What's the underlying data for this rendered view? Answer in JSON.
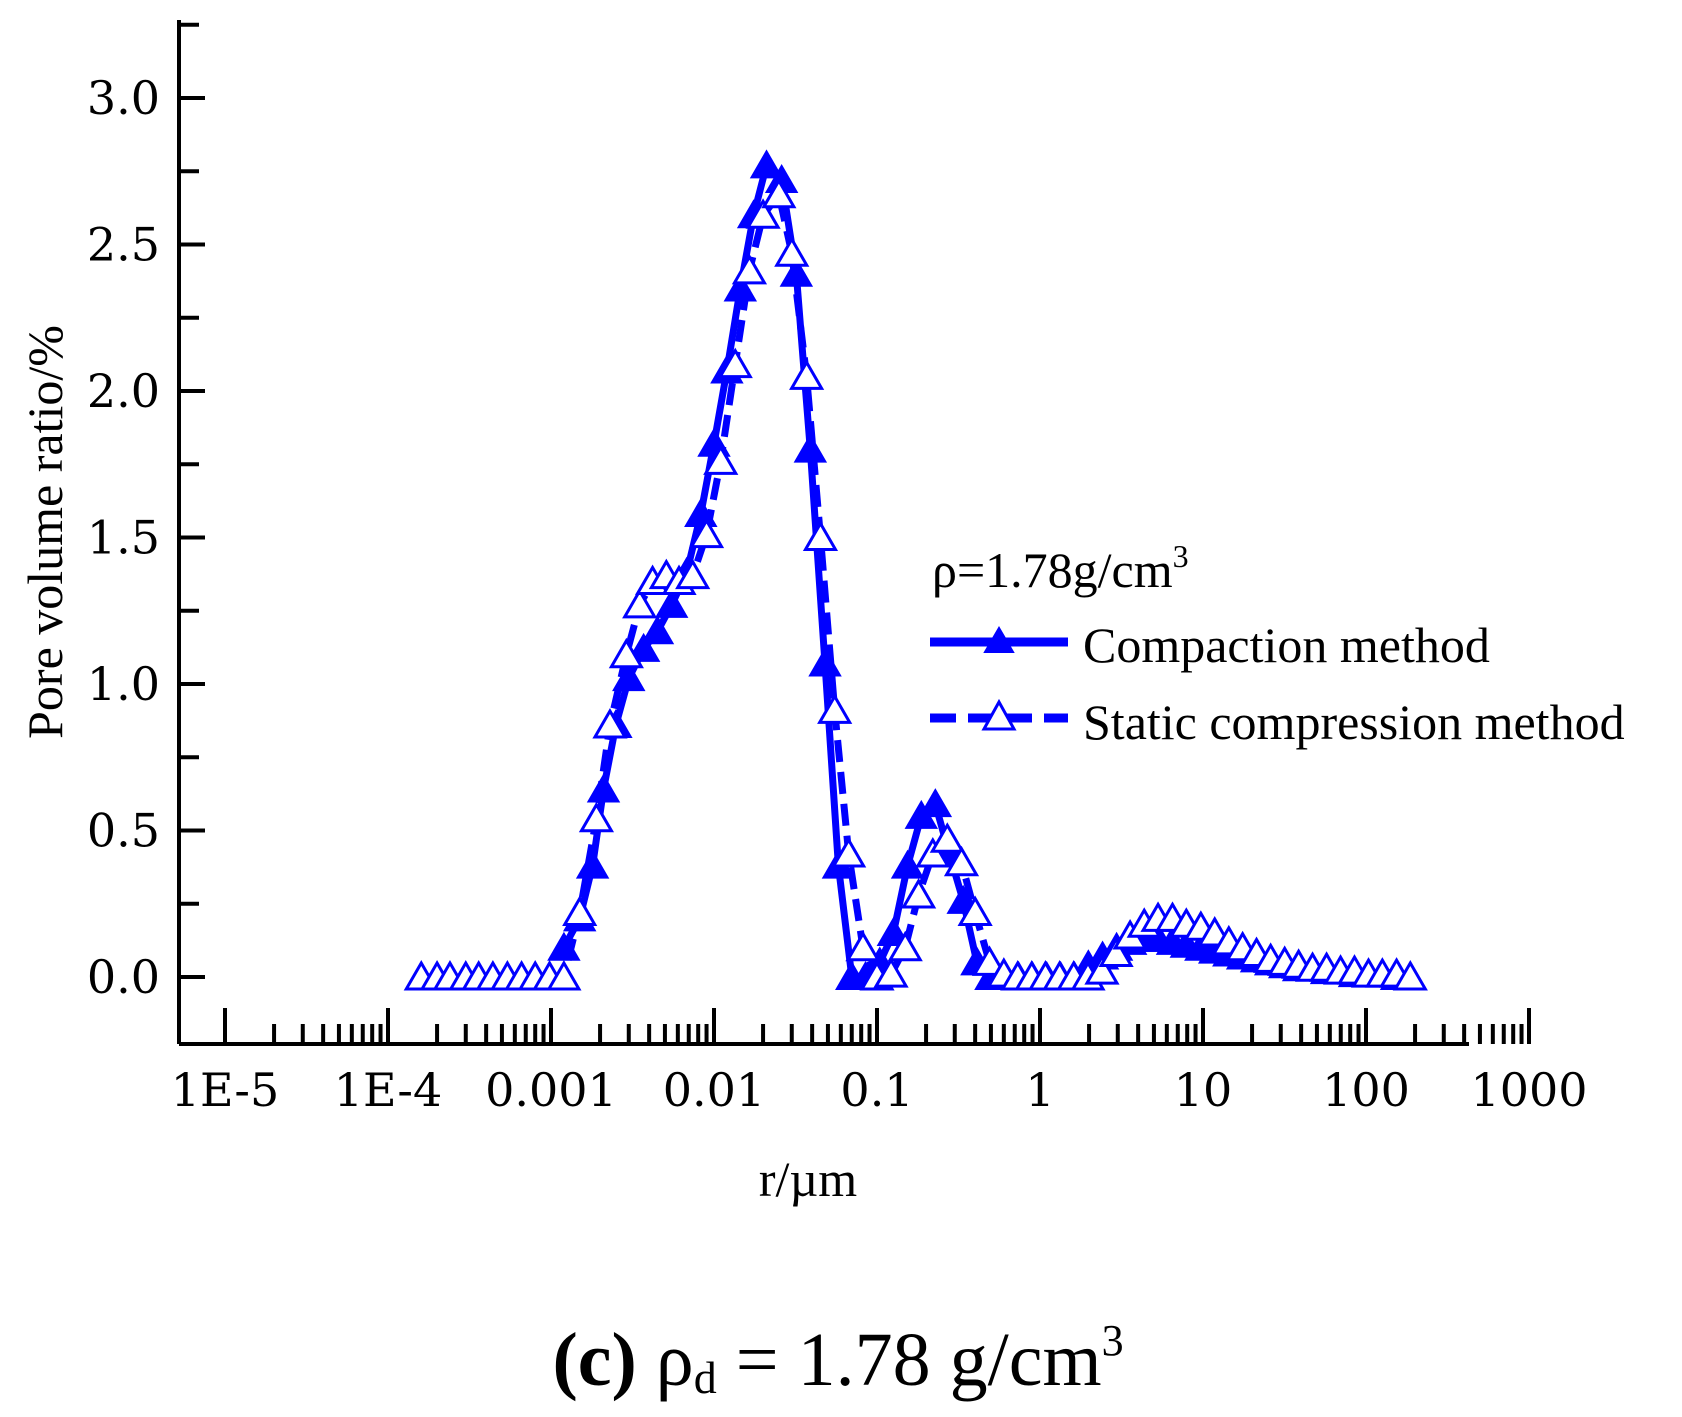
{
  "chart_data": {
    "type": "line",
    "xscale": "log",
    "xlabel": "r/µm",
    "ylabel": "Pore volume ratio/%",
    "xlim": [
      1e-05,
      1000
    ],
    "ylim": [
      -0.25,
      3.25
    ],
    "xtick_labels": [
      {
        "value": 1e-05,
        "label": "1E-5"
      },
      {
        "value": 0.0001,
        "label": "1E-4"
      },
      {
        "value": 0.001,
        "label": "0.001"
      },
      {
        "value": 0.01,
        "label": "0.01"
      },
      {
        "value": 0.1,
        "label": "0.1"
      },
      {
        "value": 1,
        "label": "1"
      },
      {
        "value": 10,
        "label": "10"
      },
      {
        "value": 100,
        "label": "100"
      },
      {
        "value": 1000,
        "label": "1000"
      }
    ],
    "ytick_labels": [
      {
        "value": 0,
        "label": "0.0"
      },
      {
        "value": 0.5,
        "label": "0.5"
      },
      {
        "value": 1,
        "label": "1.0"
      },
      {
        "value": 1.5,
        "label": "1.5"
      },
      {
        "value": 2,
        "label": "2.0"
      },
      {
        "value": 2.5,
        "label": "2.5"
      },
      {
        "value": 3,
        "label": "3.0"
      }
    ],
    "legend_title": "ρ=1.78g/cm",
    "legend_title_sup": "3",
    "legend_position": "right",
    "series": [
      {
        "name": "Compaction method",
        "color": "#0000ff",
        "marker": "filled-triangle",
        "line": "solid",
        "points": [
          [
            0.0012,
            0.1
          ],
          [
            0.0015,
            0.2
          ],
          [
            0.0018,
            0.38
          ],
          [
            0.0021,
            0.64
          ],
          [
            0.0025,
            0.86
          ],
          [
            0.003,
            1.02
          ],
          [
            0.0037,
            1.12
          ],
          [
            0.0045,
            1.18
          ],
          [
            0.0055,
            1.27
          ],
          [
            0.0068,
            1.38
          ],
          [
            0.0083,
            1.58
          ],
          [
            0.01,
            1.82
          ],
          [
            0.012,
            2.07
          ],
          [
            0.0145,
            2.35
          ],
          [
            0.0175,
            2.6
          ],
          [
            0.021,
            2.77
          ],
          [
            0.026,
            2.72
          ],
          [
            0.032,
            2.4
          ],
          [
            0.039,
            1.8
          ],
          [
            0.048,
            1.07
          ],
          [
            0.058,
            0.38
          ],
          [
            0.07,
            0.0
          ],
          [
            0.085,
            0.0
          ],
          [
            0.104,
            0.05
          ],
          [
            0.126,
            0.15
          ],
          [
            0.154,
            0.38
          ],
          [
            0.187,
            0.55
          ],
          [
            0.228,
            0.59
          ],
          [
            0.278,
            0.42
          ],
          [
            0.338,
            0.26
          ],
          [
            0.41,
            0.05
          ],
          [
            0.5,
            0.0
          ],
          [
            0.61,
            0.0
          ],
          [
            0.74,
            0.0
          ],
          [
            0.9,
            0.0
          ],
          [
            1.1,
            0.0
          ],
          [
            1.34,
            0.0
          ],
          [
            1.63,
            0.0
          ],
          [
            1.98,
            0.04
          ],
          [
            2.42,
            0.07
          ],
          [
            2.95,
            0.1
          ],
          [
            3.6,
            0.12
          ],
          [
            4.4,
            0.13
          ],
          [
            5.3,
            0.13
          ],
          [
            6.5,
            0.12
          ],
          [
            7.9,
            0.11
          ],
          [
            9.7,
            0.1
          ],
          [
            11.8,
            0.09
          ],
          [
            14.4,
            0.08
          ],
          [
            17.5,
            0.07
          ],
          [
            21.3,
            0.06
          ],
          [
            26,
            0.05
          ],
          [
            31.7,
            0.04
          ],
          [
            38.6,
            0.03
          ],
          [
            47,
            0.03
          ],
          [
            57.3,
            0.02
          ],
          [
            69.8,
            0.02
          ],
          [
            85,
            0.01
          ],
          [
            103.6,
            0.01
          ],
          [
            126,
            0.01
          ],
          [
            154,
            0.0
          ],
          [
            187,
            0.0
          ]
        ]
      },
      {
        "name": "Static compression method",
        "color": "#0000ff",
        "marker": "open-triangle",
        "line": "dashed",
        "points": [
          [
            0.00016,
            0.0
          ],
          [
            0.0002,
            0.0
          ],
          [
            0.00024,
            0.0
          ],
          [
            0.0003,
            0.0
          ],
          [
            0.00036,
            0.0
          ],
          [
            0.00044,
            0.0
          ],
          [
            0.00054,
            0.0
          ],
          [
            0.00066,
            0.0
          ],
          [
            0.0008,
            0.0
          ],
          [
            0.00098,
            0.0
          ],
          [
            0.0012,
            0.0
          ],
          [
            0.0015,
            0.22
          ],
          [
            0.0019,
            0.54
          ],
          [
            0.0023,
            0.86
          ],
          [
            0.0029,
            1.1
          ],
          [
            0.0035,
            1.27
          ],
          [
            0.0042,
            1.35
          ],
          [
            0.0051,
            1.37
          ],
          [
            0.0061,
            1.35
          ],
          [
            0.0074,
            1.37
          ],
          [
            0.009,
            1.51
          ],
          [
            0.011,
            1.76
          ],
          [
            0.0135,
            2.09
          ],
          [
            0.0165,
            2.41
          ],
          [
            0.02,
            2.6
          ],
          [
            0.025,
            2.67
          ],
          [
            0.03,
            2.47
          ],
          [
            0.037,
            2.05
          ],
          [
            0.045,
            1.5
          ],
          [
            0.055,
            0.91
          ],
          [
            0.067,
            0.42
          ],
          [
            0.082,
            0.1
          ],
          [
            0.1,
            0.0
          ],
          [
            0.122,
            0.01
          ],
          [
            0.149,
            0.1
          ],
          [
            0.18,
            0.28
          ],
          [
            0.22,
            0.42
          ],
          [
            0.27,
            0.47
          ],
          [
            0.33,
            0.39
          ],
          [
            0.4,
            0.22
          ],
          [
            0.49,
            0.05
          ],
          [
            0.6,
            0.01
          ],
          [
            0.73,
            0.0
          ],
          [
            0.89,
            0.0
          ],
          [
            1.08,
            0.0
          ],
          [
            1.32,
            0.0
          ],
          [
            1.61,
            0.0
          ],
          [
            1.97,
            0.0
          ],
          [
            2.4,
            0.02
          ],
          [
            2.93,
            0.08
          ],
          [
            3.57,
            0.14
          ],
          [
            4.36,
            0.18
          ],
          [
            5.3,
            0.2
          ],
          [
            6.5,
            0.2
          ],
          [
            7.9,
            0.18
          ],
          [
            9.7,
            0.17
          ],
          [
            11.8,
            0.15
          ],
          [
            14.4,
            0.12
          ],
          [
            17.5,
            0.1
          ],
          [
            21.3,
            0.08
          ],
          [
            26,
            0.06
          ],
          [
            31.7,
            0.05
          ],
          [
            38.6,
            0.04
          ],
          [
            47,
            0.03
          ],
          [
            57.3,
            0.03
          ],
          [
            69.8,
            0.02
          ],
          [
            85,
            0.02
          ],
          [
            103.6,
            0.01
          ],
          [
            126,
            0.01
          ],
          [
            154,
            0.01
          ],
          [
            187,
            0.0
          ]
        ]
      }
    ]
  },
  "caption": {
    "label": "(c)",
    "symbol": "ρ",
    "subscript": "d",
    "text": " = 1.78 g/cm",
    "superscript": "3"
  }
}
